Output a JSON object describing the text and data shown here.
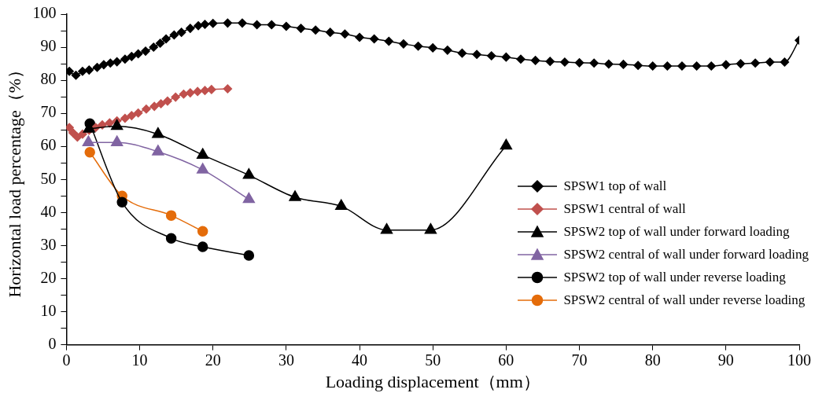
{
  "chart_data": {
    "type": "line",
    "xlabel": "Loading displacement（mm）",
    "ylabel": "Horizontal load percentage（%）",
    "xlim": [
      0,
      100
    ],
    "xticks": [
      0,
      10,
      20,
      30,
      40,
      50,
      60,
      70,
      80,
      90,
      100
    ],
    "ylim": [
      0,
      100
    ],
    "yticks": [
      0,
      {
        "value": 5,
        "label": null
      },
      10,
      {
        "value": 15,
        "label": null
      },
      20,
      {
        "value": 25,
        "label": null
      },
      30,
      {
        "value": 35,
        "label": null
      },
      40,
      {
        "value": 45,
        "label": null
      },
      50,
      {
        "value": 55,
        "label": null
      },
      60,
      {
        "value": 65,
        "label": null
      },
      70,
      {
        "value": 75,
        "label": null
      },
      80,
      {
        "value": 85,
        "label": null
      },
      90,
      {
        "value": 95,
        "label": null
      },
      100
    ],
    "grid": false,
    "legend": "right",
    "series": [
      {
        "name": "SPSW1 top of wall",
        "color": "#000000",
        "marker": "diamond",
        "x": [
          0.4,
          1.3,
          2.2,
          3.1,
          4.2,
          5.1,
          6.0,
          6.9,
          8.0,
          8.9,
          9.8,
          10.8,
          11.9,
          12.8,
          13.6,
          14.7,
          15.7,
          16.9,
          18.0,
          18.9,
          20,
          22,
          24,
          26,
          28,
          30,
          32,
          34,
          36,
          38,
          40,
          42,
          44,
          46,
          48,
          50,
          52,
          54,
          56,
          58,
          60,
          62,
          64,
          66,
          68,
          70,
          72,
          74,
          76,
          78,
          80,
          82,
          84,
          86,
          88,
          90,
          92,
          94,
          96,
          98,
          100
        ],
        "values": [
          82.7,
          81.5,
          82.7,
          83.1,
          83.9,
          84.7,
          85.2,
          85.6,
          86.4,
          87.2,
          88.0,
          88.8,
          90.0,
          91.2,
          92.5,
          93.7,
          94.5,
          95.7,
          96.5,
          96.9,
          97.2,
          97.3,
          97.3,
          96.8,
          96.8,
          96.3,
          95.7,
          95.2,
          94.5,
          94.0,
          93.0,
          92.5,
          91.8,
          91.0,
          90.3,
          89.8,
          89.1,
          88.2,
          87.8,
          87.4,
          87.0,
          86.4,
          86.0,
          85.7,
          85.5,
          85.3,
          85.2,
          84.9,
          84.8,
          84.5,
          84.3,
          84.3,
          84.3,
          84.3,
          84.3,
          84.7,
          85.0,
          85.2,
          85.5,
          85.5,
          92.1
        ]
      },
      {
        "name": "SPSW1 central of wall",
        "color": "#c0504d",
        "marker": "diamond",
        "x": [
          0.4,
          0.9,
          1.5,
          2.2,
          3.1,
          4.0,
          4.9,
          5.9,
          6.9,
          8.0,
          8.9,
          9.8,
          10.9,
          12.0,
          12.9,
          13.8,
          14.9,
          16.0,
          16.9,
          17.9,
          18.9,
          19.8,
          22.0
        ],
        "values": [
          65.7,
          64.1,
          62.8,
          63.7,
          64.9,
          65.7,
          66.5,
          67.1,
          67.7,
          68.5,
          69.3,
          70.1,
          71.3,
          72.1,
          72.9,
          73.7,
          74.9,
          75.8,
          76.2,
          76.6,
          76.9,
          77.2,
          77.4
        ]
      },
      {
        "name": "SPSW2 top of wall under forward loading",
        "color": "#000000",
        "marker": "triangle",
        "x": [
          3.1,
          6.9,
          12.5,
          18.6,
          24.9,
          31.2,
          37.5,
          43.7,
          49.7,
          60
        ],
        "values": [
          65.3,
          66.1,
          63.7,
          57.4,
          51.3,
          44.6,
          41.9,
          34.7,
          34.7,
          60.2
        ]
      },
      {
        "name": "SPSW2 central of wall under forward loading",
        "color": "#8064a2",
        "marker": "triangle",
        "x": [
          3.0,
          6.9,
          12.5,
          18.6,
          24.9
        ],
        "values": [
          61.2,
          61.2,
          58.4,
          52.9,
          44.0
        ]
      },
      {
        "name": "SPSW2 top of wall under reverse loading",
        "color": "#000000",
        "marker": "circle",
        "x": [
          3.2,
          7.6,
          14.3,
          18.6,
          24.9
        ],
        "values": [
          66.9,
          43.1,
          32.2,
          29.6,
          27.0
        ]
      },
      {
        "name": "SPSW2 central of wall under reverse loading",
        "color": "#e46c0a",
        "marker": "circle",
        "x": [
          3.2,
          7.6,
          14.3,
          18.6
        ],
        "values": [
          58.2,
          45.0,
          39.1,
          34.3
        ]
      }
    ]
  }
}
